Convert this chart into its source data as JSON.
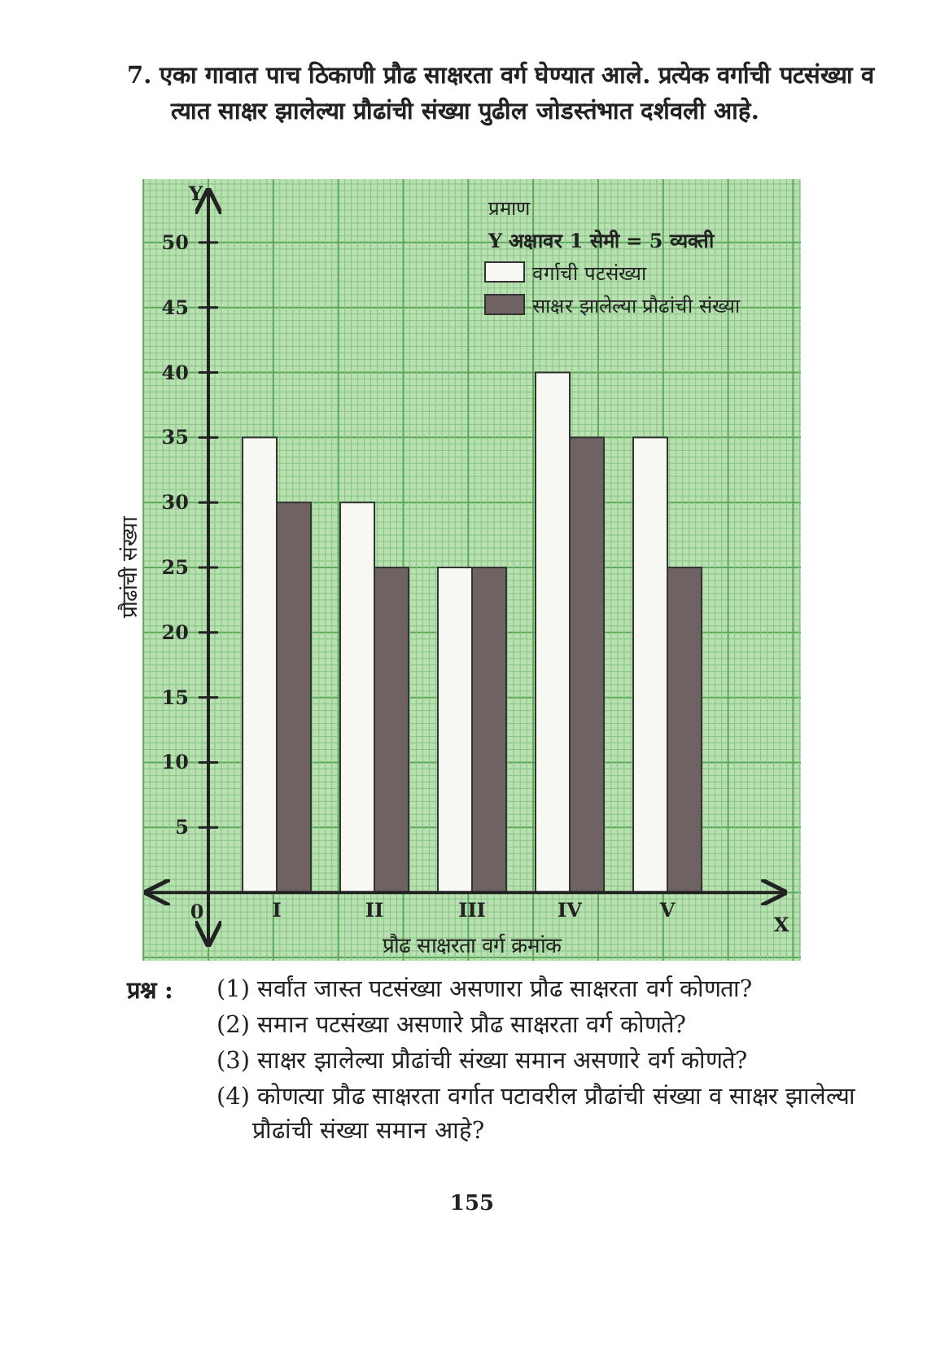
{
  "chart_data": {
    "type": "bar",
    "title": "7. एका गावात पाच ठिकाणी प्रौढ साक्षरता वर्ग घेण्यात आले. प्रत्येक वर्गाची पटसंख्या व त्यात साक्षर झालेल्या प्रौढांची संख्या पुढील जोडस्तंभात दर्शवली आहे.",
    "xlabel": "प्रौढ साक्षरता वर्ग क्रमांक",
    "ylabel": "प्रौढांची संख्या",
    "legend_title": "प्रमाण",
    "categories": [
      "I",
      "II",
      "III",
      "IV",
      "V"
    ],
    "series": [
      {
        "name": "वर्गाची पटसंख्या",
        "color": "#f8f8f2",
        "values": [
          35,
          30,
          25,
          40,
          35
        ]
      },
      {
        "name": "साक्षर झालेल्या प्रौढांची संख्या",
        "color": "#6e6262",
        "values": [
          30,
          25,
          25,
          35,
          25
        ]
      }
    ],
    "ylim": [
      -4,
      54
    ],
    "yticks": [
      5,
      10,
      15,
      20,
      25,
      30,
      35,
      40,
      45,
      50
    ],
    "grid": true,
    "legend": "top right",
    "annotations": [
      "Y अक्षावर 1 सेमी = 5 व्यक्ती",
      "Y",
      "X",
      "प्रश्न :",
      "(1) सर्वांत जास्त पटसंख्या असणारा प्रौढ साक्षरता वर्ग कोणता?",
      "(2) समान पटसंख्या असणारे प्रौढ साक्षरता वर्ग कोणते?",
      "(3) साक्षर झालेल्या प्रौढांची संख्या समान असणारे वर्ग कोणते?",
      "(4) कोणत्या प्रौढ साक्षरता वर्गात पटावरील प्रौढांची संख्या व साक्षर झालेल्या प्रौढांची संख्या समान आहे?",
      "155",
      "0"
    ]
  }
}
